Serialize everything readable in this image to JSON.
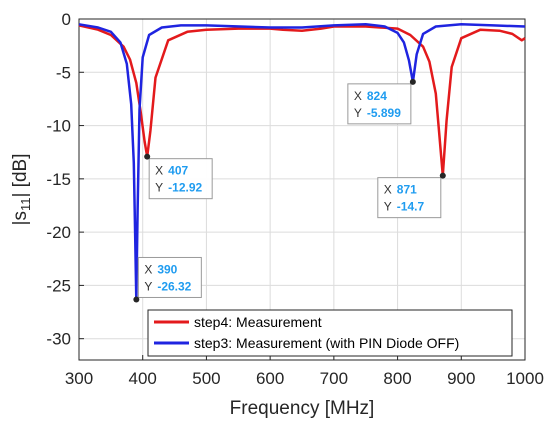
{
  "chart_data": {
    "type": "line",
    "xlabel": "Frequency [MHz]",
    "ylabel_main": "|s",
    "ylabel_sub": "11",
    "ylabel_tail": "| [dB]",
    "xlim": [
      300,
      1000
    ],
    "ylim": [
      -32,
      0
    ],
    "xticks": [
      300,
      400,
      500,
      600,
      700,
      800,
      900,
      1000
    ],
    "yticks": [
      0,
      -5,
      -10,
      -15,
      -20,
      -25,
      -30
    ],
    "grid": true,
    "legend_position": "bottom-right",
    "series": [
      {
        "name": "step4: Measurement",
        "color": "#e31a1c",
        "x": [
          300,
          330,
          350,
          370,
          380,
          390,
          397,
          403,
          407,
          412,
          420,
          440,
          470,
          500,
          550,
          600,
          620,
          650,
          680,
          700,
          750,
          800,
          820,
          840,
          850,
          860,
          865,
          871,
          877,
          885,
          900,
          930,
          960,
          980,
          995,
          1000
        ],
        "y": [
          -0.6,
          -1.0,
          -1.5,
          -2.6,
          -3.8,
          -6.0,
          -8.8,
          -11.5,
          -12.92,
          -10.5,
          -5.5,
          -2.0,
          -1.2,
          -1.0,
          -0.9,
          -0.9,
          -1.0,
          -1.1,
          -0.9,
          -0.7,
          -0.7,
          -0.9,
          -1.5,
          -2.6,
          -4.0,
          -7.0,
          -10.5,
          -14.7,
          -9.5,
          -4.5,
          -1.8,
          -1.0,
          -1.1,
          -1.4,
          -2.0,
          -1.8
        ]
      },
      {
        "name": "step3: Measurement (with PIN Diode OFF)",
        "color": "#1f24e0",
        "x": [
          300,
          330,
          350,
          365,
          375,
          382,
          386,
          388,
          390,
          392,
          395,
          400,
          410,
          430,
          460,
          500,
          600,
          650,
          700,
          750,
          780,
          800,
          810,
          818,
          824,
          830,
          840,
          860,
          900,
          950,
          1000
        ],
        "y": [
          -0.5,
          -0.8,
          -1.2,
          -2.2,
          -4.2,
          -8.0,
          -13.5,
          -20.0,
          -26.32,
          -18.0,
          -8.5,
          -3.6,
          -1.5,
          -0.8,
          -0.6,
          -0.6,
          -0.8,
          -0.8,
          -0.6,
          -0.5,
          -0.7,
          -1.3,
          -2.2,
          -3.9,
          -5.899,
          -3.3,
          -1.4,
          -0.7,
          -0.5,
          -0.6,
          -0.7
        ]
      }
    ],
    "datatips": [
      {
        "series": 0,
        "x_value": 407,
        "y_value": -12.92,
        "x_label": "X",
        "y_label": "Y",
        "x_text": "407",
        "y_text": "-12.92",
        "box_side": "below-right"
      },
      {
        "series": 1,
        "x_value": 390,
        "y_value": -26.32,
        "x_label": "X",
        "y_label": "Y",
        "x_text": "390",
        "y_text": "-26.32",
        "box_side": "above-right"
      },
      {
        "series": 1,
        "x_value": 824,
        "y_value": -5.899,
        "x_label": "X",
        "y_label": "Y",
        "x_text": "824",
        "y_text": "-5.899",
        "box_side": "below-left"
      },
      {
        "series": 0,
        "x_value": 871,
        "y_value": -14.7,
        "x_label": "X",
        "y_label": "Y",
        "x_text": "871",
        "y_text": "-14.7",
        "box_side": "below-left"
      }
    ]
  }
}
